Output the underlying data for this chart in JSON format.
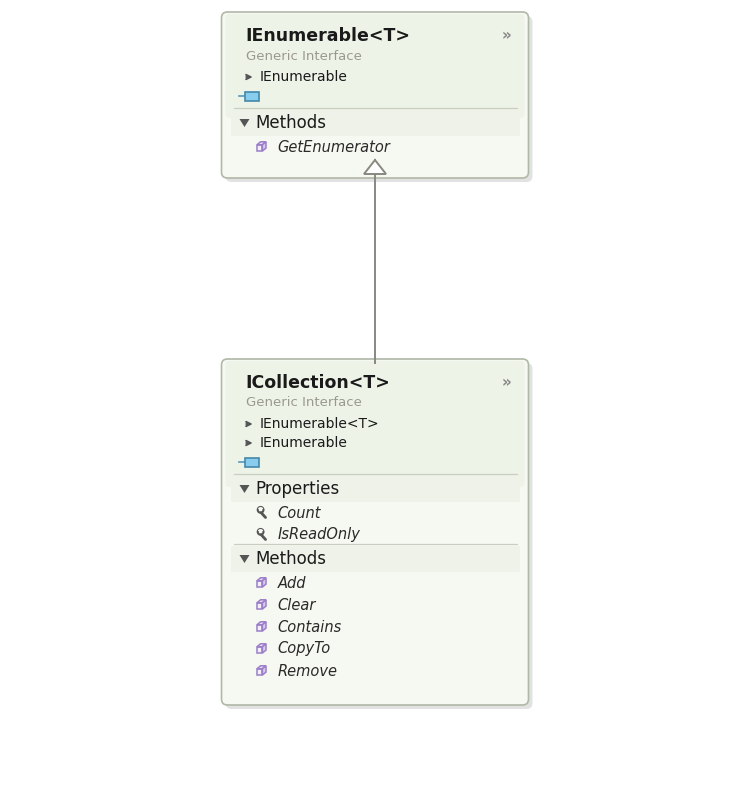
{
  "bg_color": "#ffffff",
  "box_bg": "#f6f8f2",
  "box_header_bg": "#eef3e8",
  "box_border": "#b0b8a8",
  "shadow_color": "#d0d0d0",
  "section_bg": "#eef2e8",
  "divider_color": "#c8cec0",
  "text_title": "#1a1a1a",
  "text_subtitle": "#999990",
  "text_interface": "#1a1a1a",
  "text_item": "#2a2a2a",
  "chevron_color": "#888888",
  "triangle_color": "#555555",
  "cube_border": "#9b7fc8",
  "cube_top": "#e8dff5",
  "cube_front": "#f2eefa",
  "cube_right": "#d8ccee",
  "arrow_line_color": "#888880",
  "interface_arrow_color": "#555555",
  "enum_icon_fill": "#88ccee",
  "enum_icon_border": "#4488aa",
  "enum_icon_line": "#5599bb",
  "ienumerable": {
    "title": "IEnumerable<T>",
    "subtitle": "Generic Interface",
    "interfaces": [
      "IEnumerable"
    ],
    "sections": [
      {
        "label": "Methods",
        "items": [
          {
            "type": "method",
            "name": "GetEnumerator"
          }
        ]
      }
    ]
  },
  "icollection": {
    "title": "ICollection<T>",
    "subtitle": "Generic Interface",
    "interfaces": [
      "IEnumerable<T>",
      "IEnumerable"
    ],
    "sections": [
      {
        "label": "Properties",
        "items": [
          {
            "type": "property",
            "name": "Count"
          },
          {
            "type": "property",
            "name": "IsReadOnly"
          }
        ]
      },
      {
        "label": "Methods",
        "items": [
          {
            "type": "method",
            "name": "Add"
          },
          {
            "type": "method",
            "name": "Clear"
          },
          {
            "type": "method",
            "name": "Contains"
          },
          {
            "type": "method",
            "name": "CopyTo"
          },
          {
            "type": "method",
            "name": "Remove"
          }
        ]
      }
    ]
  }
}
